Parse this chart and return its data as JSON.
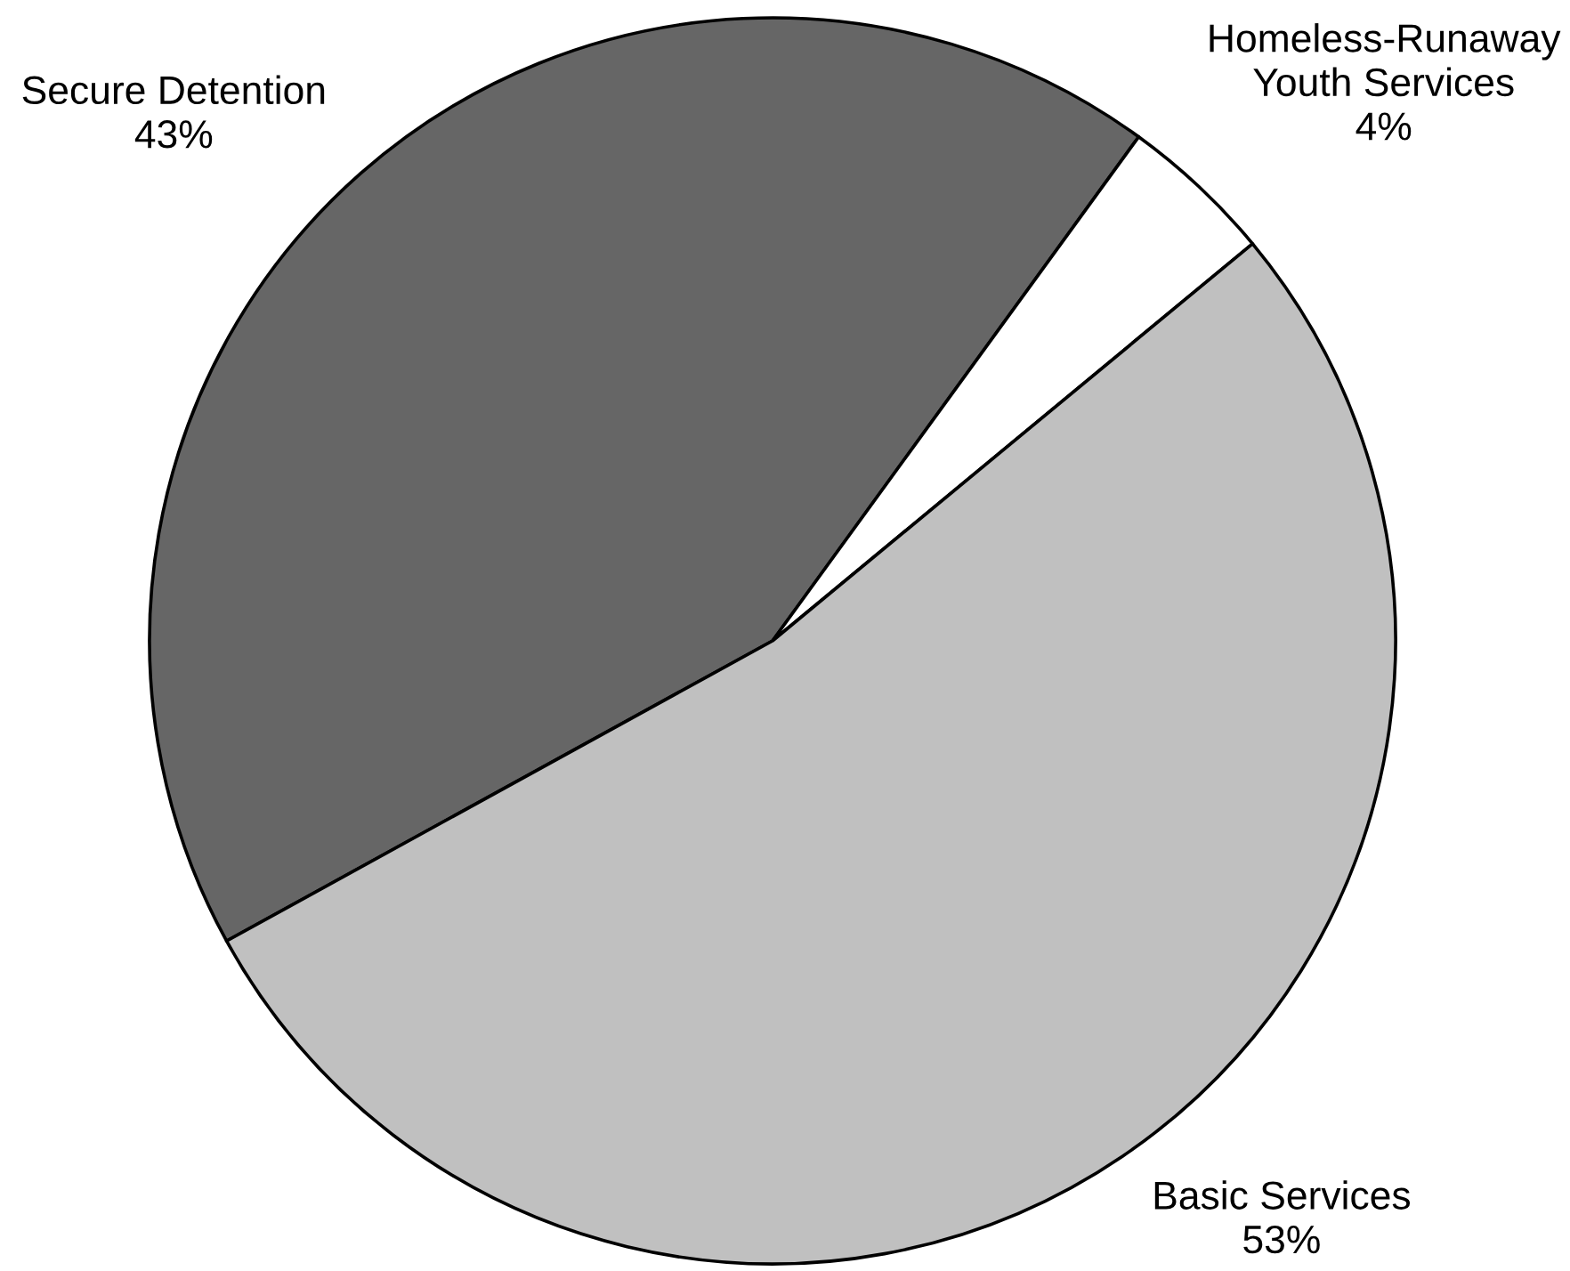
{
  "chart_data": {
    "type": "pie",
    "categories": [
      "Secure Detention",
      "Homeless-Runaway Youth Services",
      "Basic Services"
    ],
    "values": [
      43,
      4,
      53
    ],
    "colors": [
      "#666666",
      "#ffffff",
      "#c0c0c0"
    ],
    "value_labels": [
      "43%",
      "4%",
      "53%"
    ]
  }
}
